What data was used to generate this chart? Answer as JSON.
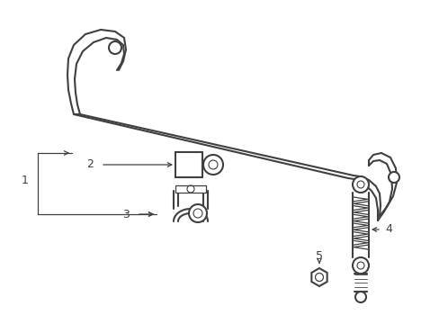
{
  "background_color": "#ffffff",
  "line_color": "#404040",
  "label_color": "#000000",
  "figsize": [
    4.89,
    3.6
  ],
  "dpi": 100,
  "bar_lw": 1.5,
  "detail_lw": 1.0
}
